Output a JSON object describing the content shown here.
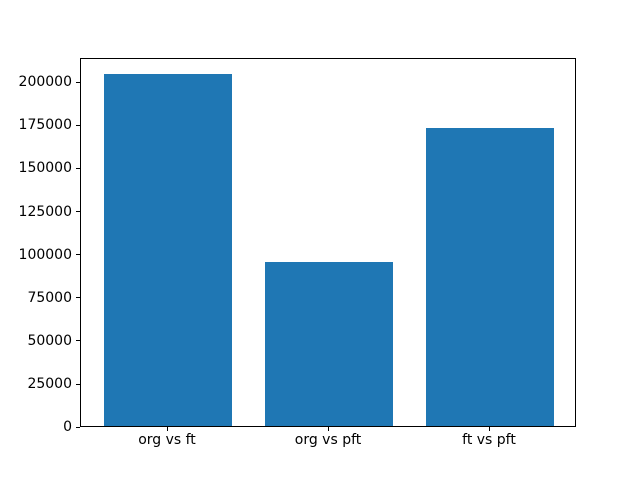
{
  "figure": {
    "background_color": "#ffffff",
    "spine_color": "#000000",
    "text_color": "#000000"
  },
  "chart_data": {
    "type": "bar",
    "title": "",
    "xlabel": "",
    "ylabel": "",
    "categories": [
      "org vs ft",
      "org vs pft",
      "ft vs pft"
    ],
    "values": [
      204000,
      95000,
      173000
    ],
    "bar_color": "#1f77b4",
    "bar_width": 0.8,
    "ylim": [
      0,
      214200
    ],
    "xlim": [
      -0.54,
      2.54
    ],
    "yticks": [
      0,
      25000,
      50000,
      75000,
      100000,
      125000,
      150000,
      175000,
      200000
    ],
    "ytick_labels": [
      "0",
      "25000",
      "50000",
      "75000",
      "100000",
      "125000",
      "150000",
      "175000",
      "200000"
    ],
    "grid": false,
    "legend": false
  }
}
